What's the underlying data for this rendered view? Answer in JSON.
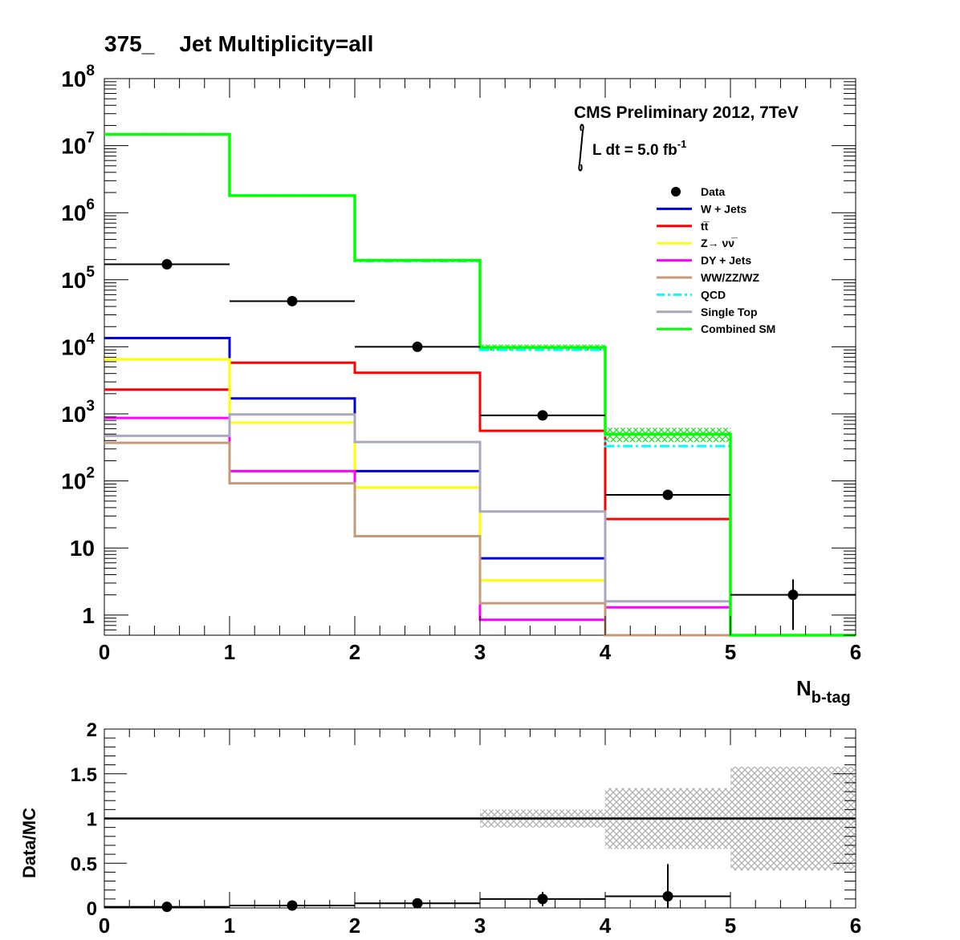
{
  "title": "375_    Jet Multiplicity=all",
  "cms_label": "CMS Preliminary 2012, 7TeV",
  "lumi": {
    "prefix": "L dt = 5.0 fb",
    "exponent": "-1"
  },
  "chart_data": [
    {
      "type": "step-histogram",
      "y_scale": "log",
      "xlim": [
        0,
        6
      ],
      "ylim": [
        0.5,
        100000000
      ],
      "x_ticks": [
        "0",
        "1",
        "2",
        "3",
        "4",
        "5",
        "6"
      ],
      "y_ticks": [
        {
          "value": 1,
          "base": "1",
          "exp": ""
        },
        {
          "value": 10,
          "base": "10",
          "exp": ""
        },
        {
          "value": 100,
          "base": "10",
          "exp": "2"
        },
        {
          "value": 1000,
          "base": "10",
          "exp": "3"
        },
        {
          "value": 10000,
          "base": "10",
          "exp": "4"
        },
        {
          "value": 100000,
          "base": "10",
          "exp": "5"
        },
        {
          "value": 1000000,
          "base": "10",
          "exp": "6"
        },
        {
          "value": 10000000,
          "base": "10",
          "exp": "7"
        },
        {
          "value": 100000000,
          "base": "10",
          "exp": "8"
        }
      ],
      "xlabel": {
        "main": "N",
        "sub": "b-tag"
      },
      "legend_position": "top-right",
      "series": [
        {
          "name": "W + Jets",
          "color": "#0000dd",
          "values": [
            13500,
            1700,
            140,
            7,
            null,
            null
          ]
        },
        {
          "name": "tt̅",
          "color": "#ff0000",
          "values": [
            2300,
            5800,
            4100,
            560,
            27,
            null
          ]
        },
        {
          "name": "Z→ νν̅",
          "color": "#ffff00",
          "values": [
            6500,
            740,
            80,
            3.3,
            null,
            null
          ]
        },
        {
          "name": "DY + Jets",
          "color": "#ff00ff",
          "values": [
            870,
            140,
            15,
            0.85,
            1.3,
            null
          ]
        },
        {
          "name": "WW/ZZ/WZ",
          "color": "#c69a79",
          "values": [
            370,
            92,
            15,
            1.5,
            0.5,
            null
          ]
        },
        {
          "name": "QCD",
          "color": "#00ffff",
          "values": [
            14800000,
            1800000,
            190000,
            9000,
            330,
            null
          ]
        },
        {
          "name": "Single Top",
          "color": "#a8a8bf",
          "values": [
            470,
            980,
            380,
            35,
            1.6,
            null
          ]
        },
        {
          "name": "Combined SM",
          "color": "#00ff00",
          "values": [
            14800000,
            1800000,
            195000,
            9800,
            500,
            null
          ]
        }
      ],
      "combined_band": [
        [
          0,
          0
        ],
        [
          0,
          0
        ],
        [
          185000,
          205000
        ],
        [
          8800,
          10800
        ],
        [
          380,
          620
        ],
        [
          0,
          0
        ]
      ],
      "data": {
        "name": "Data",
        "x": [
          0.5,
          1.5,
          2.5,
          3.5,
          4.5,
          5.5
        ],
        "y": [
          170000,
          48000,
          10000,
          950,
          62,
          2
        ],
        "err_low": [
          0,
          0,
          0,
          0,
          0,
          1.4
        ],
        "err_high": [
          0,
          0,
          0,
          0,
          0,
          1.4
        ]
      }
    },
    {
      "type": "ratio",
      "ylabel": "Data/MC",
      "xlim": [
        0,
        6
      ],
      "ylim": [
        0,
        2
      ],
      "x_ticks": [
        "0",
        "1",
        "2",
        "3",
        "4",
        "5",
        "6"
      ],
      "y_ticks": [
        "0",
        "0.5",
        "1",
        "1.5",
        "2"
      ],
      "reference_line": 1,
      "uncertainty_band": [
        [
          0.995,
          1.005
        ],
        [
          0.995,
          1.005
        ],
        [
          0.99,
          1.01
        ],
        [
          0.9,
          1.1
        ],
        [
          0.66,
          1.34
        ],
        [
          0.42,
          1.58
        ]
      ],
      "points": {
        "x": [
          0.5,
          1.5,
          2.5,
          3.5,
          4.5
        ],
        "y": [
          0.012,
          0.027,
          0.052,
          0.1,
          0.13
        ],
        "err": [
          0,
          0,
          0,
          0.08,
          0.36
        ]
      }
    }
  ]
}
